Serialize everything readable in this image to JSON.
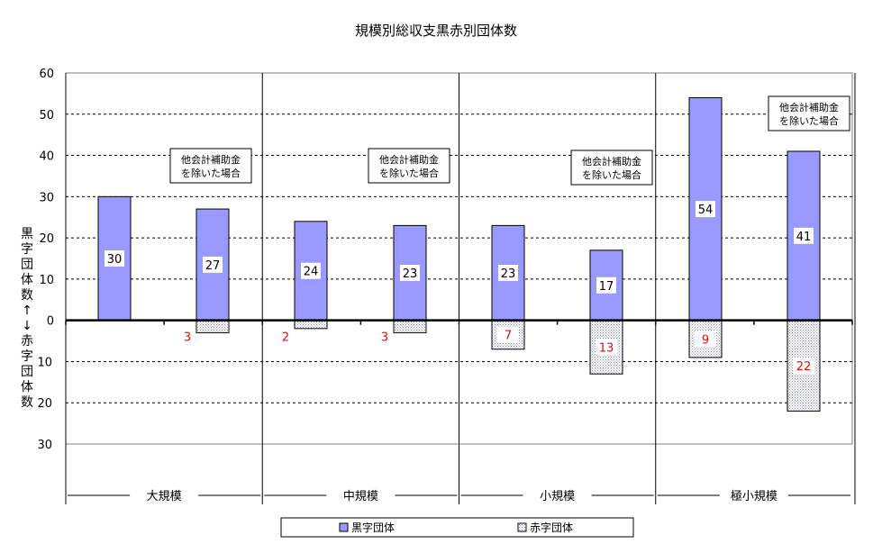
{
  "chart_data": {
    "type": "bar",
    "title": "規模別総収支黒赤別団体数",
    "ylabel": "黒字団体数↑↓赤字団体数",
    "ylim": [
      -30,
      60
    ],
    "yticks": [
      {
        "value": 60,
        "label": "60"
      },
      {
        "value": 50,
        "label": "50"
      },
      {
        "value": 40,
        "label": "40"
      },
      {
        "value": 30,
        "label": "30"
      },
      {
        "value": 20,
        "label": "20"
      },
      {
        "value": 10,
        "label": "10"
      },
      {
        "value": 0,
        "label": "0"
      },
      {
        "value": -10,
        "label": "10"
      },
      {
        "value": -20,
        "label": "20"
      },
      {
        "value": -30,
        "label": "30"
      }
    ],
    "grid": true,
    "legend_position": "bottom",
    "groups": [
      "大規模",
      "中規模",
      "小規模",
      "極小規模"
    ],
    "annotation": "他会計補助金を除いた場合",
    "annotation_lines": [
      "他会計補助金",
      "を除いた場合"
    ],
    "categories": [
      "大規模",
      "大規模 他会計補助金を除いた場合",
      "中規模",
      "中規模 他会計補助金を除いた場合",
      "小規模",
      "小規模 他会計補助金を除いた場合",
      "極小規模",
      "極小規模 他会計補助金を除いた場合"
    ],
    "series": [
      {
        "name": "黒字団体",
        "color": "#9999ff",
        "values": [
          30,
          27,
          24,
          23,
          23,
          17,
          54,
          41
        ]
      },
      {
        "name": "赤字団体",
        "color": "#eaeaf6",
        "values": [
          0,
          3,
          2,
          3,
          7,
          13,
          9,
          22
        ]
      }
    ],
    "label_colors": {
      "black": "#000000",
      "red": "#ff0000"
    }
  }
}
